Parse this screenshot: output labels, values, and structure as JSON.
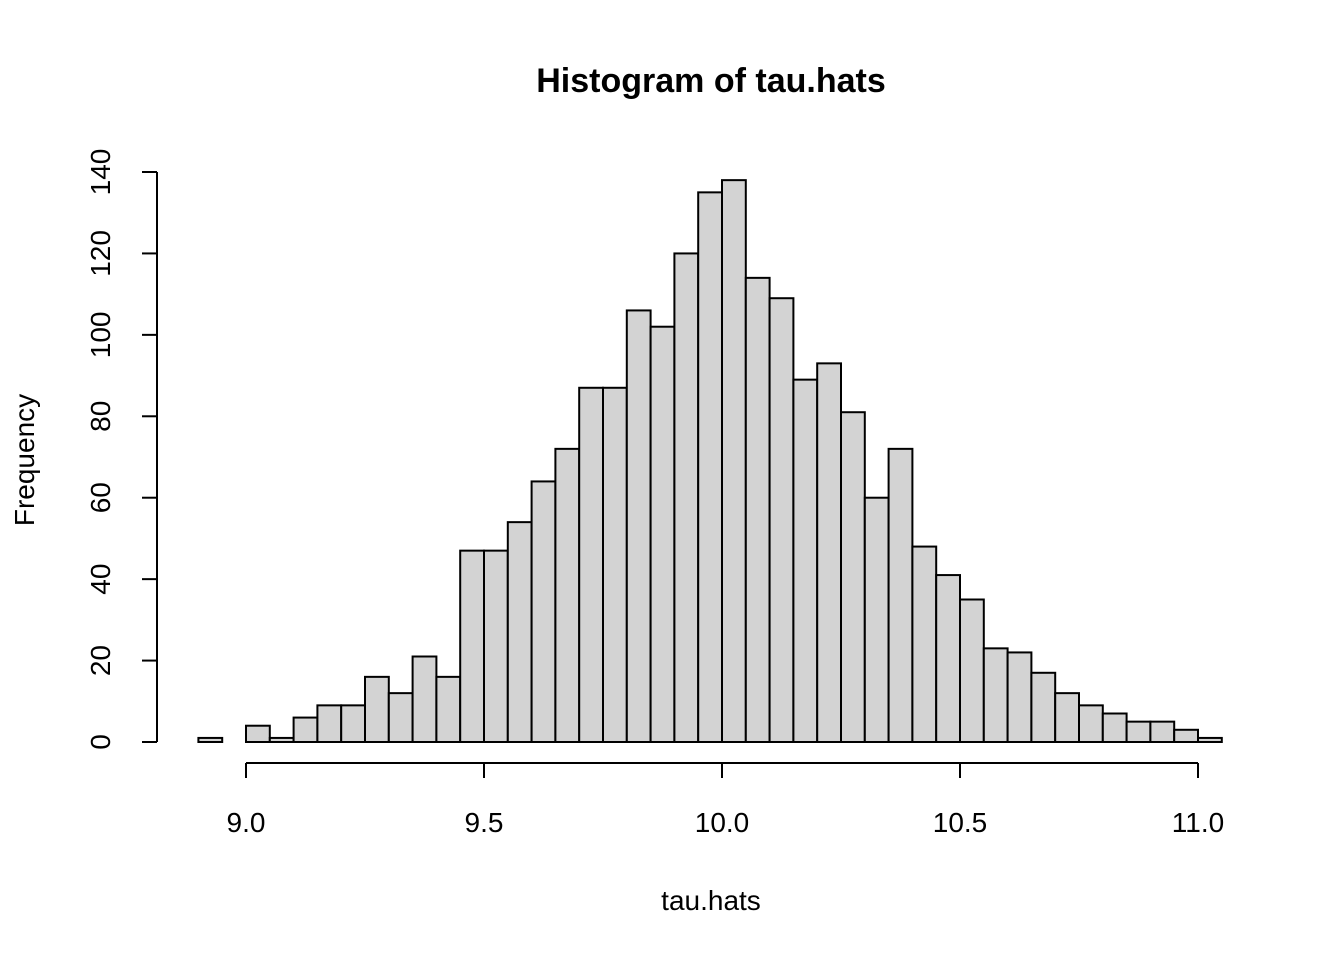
{
  "chart_data": {
    "type": "bar",
    "title": "Histogram of tau.hats",
    "xlabel": "tau.hats",
    "ylabel": "Frequency",
    "bar_color": "#d3d3d3",
    "border_color": "#000000",
    "bin_width": 0.05,
    "bin_starts": [
      8.9,
      8.95,
      9.0,
      9.05,
      9.1,
      9.15,
      9.2,
      9.25,
      9.3,
      9.35,
      9.4,
      9.45,
      9.5,
      9.55,
      9.6,
      9.65,
      9.7,
      9.75,
      9.8,
      9.85,
      9.9,
      9.95,
      10.0,
      10.05,
      10.1,
      10.15,
      10.2,
      10.25,
      10.3,
      10.35,
      10.4,
      10.45,
      10.5,
      10.55,
      10.6,
      10.65,
      10.7,
      10.75,
      10.8,
      10.85,
      10.9,
      10.95,
      11.0
    ],
    "values": [
      1,
      0,
      4,
      1,
      6,
      9,
      9,
      16,
      12,
      21,
      16,
      47,
      47,
      54,
      64,
      72,
      87,
      87,
      106,
      102,
      120,
      135,
      138,
      114,
      109,
      89,
      93,
      81,
      60,
      72,
      48,
      41,
      35,
      23,
      22,
      17,
      12,
      9,
      7,
      5,
      5,
      3,
      1
    ],
    "xlim": [
      8.9,
      11.05
    ],
    "ylim": [
      0,
      140
    ],
    "x_ticks": [
      "9.0",
      "9.5",
      "10.0",
      "10.5",
      "11.0"
    ],
    "y_ticks": [
      "0",
      "20",
      "40",
      "60",
      "80",
      "100",
      "120",
      "140"
    ],
    "grid": false,
    "legend": "none"
  }
}
